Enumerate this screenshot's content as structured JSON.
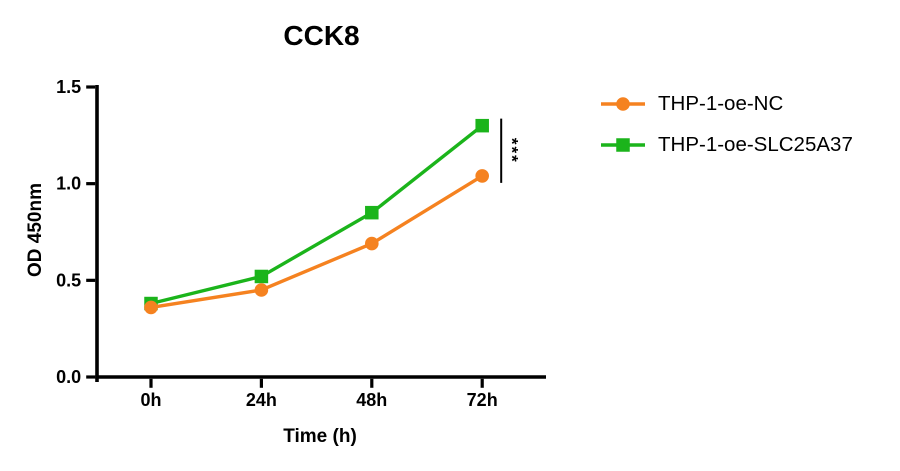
{
  "chart_data": {
    "type": "line",
    "title": "CCK8",
    "xlabel": "Time (h)",
    "ylabel": "OD 450nm",
    "categories": [
      "0h",
      "24h",
      "48h",
      "72h"
    ],
    "series": [
      {
        "name": "THP-1-oe-NC",
        "color": "#F58220",
        "marker": "circle",
        "values": [
          0.36,
          0.45,
          0.69,
          1.04
        ]
      },
      {
        "name": "THP-1-oe-SLC25A37",
        "color": "#1BB41B",
        "marker": "square",
        "values": [
          0.38,
          0.52,
          0.85,
          1.3
        ]
      }
    ],
    "ylim": [
      0,
      1.5
    ],
    "yticks": [
      "0.0",
      "0.5",
      "1.0",
      "1.5"
    ],
    "ytick_values": [
      0,
      0.5,
      1.0,
      1.5
    ],
    "grid": false,
    "legend_position": "right",
    "axis_color": "#000000",
    "annotation": {
      "text": "***",
      "x_category": "72h",
      "between": [
        "THP-1-oe-NC",
        "THP-1-oe-SLC25A37"
      ]
    }
  }
}
